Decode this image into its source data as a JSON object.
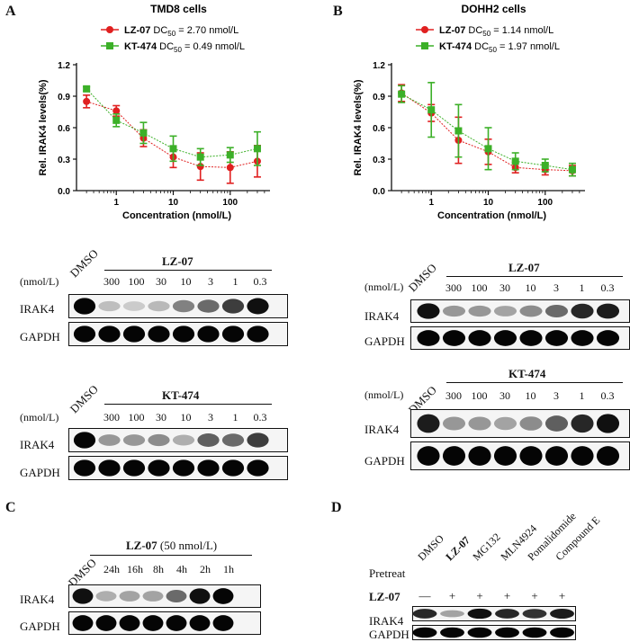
{
  "panels": {
    "a": "A",
    "b": "B",
    "c": "C",
    "d": "D"
  },
  "chart_data": [
    {
      "type": "line",
      "title": "TMD8 cells",
      "xlabel": "Concentration (nmol/L)",
      "ylabel": "Rel. IRAK4 levels(%)",
      "xscale": "log",
      "xlim": [
        0.2,
        500
      ],
      "ylim": [
        0.0,
        1.2
      ],
      "xticks": [
        "1",
        "10",
        "100"
      ],
      "yticks": [
        "0.0",
        "0.3",
        "0.6",
        "0.9",
        "1.2"
      ],
      "x": [
        0.3,
        1,
        3,
        10,
        30,
        100,
        300
      ],
      "series": [
        {
          "name": "LZ-07",
          "dc": "DC50 = 2.70 nmol/L",
          "color": "#e02020",
          "marker": "circle",
          "values": [
            0.85,
            0.76,
            0.5,
            0.32,
            0.23,
            0.22,
            0.28
          ],
          "errors": [
            0.06,
            0.05,
            0.08,
            0.1,
            0.13,
            0.15,
            0.15
          ]
        },
        {
          "name": "KT-474",
          "dc": "DC50 = 0.49 nmol/L",
          "color": "#3cb028",
          "marker": "square",
          "values": [
            0.97,
            0.67,
            0.55,
            0.4,
            0.32,
            0.34,
            0.4
          ],
          "errors": [
            0.02,
            0.06,
            0.1,
            0.12,
            0.08,
            0.07,
            0.16
          ]
        }
      ],
      "legend": [
        {
          "bold": "LZ-07",
          "text": "DC",
          "sub": "50",
          "rest": " = 2.70 nmol/L"
        },
        {
          "bold": "KT-474",
          "text": "DC",
          "sub": "50",
          "rest": " = 0.49 nmol/L"
        }
      ]
    },
    {
      "type": "line",
      "title": "DOHH2 cells",
      "xlabel": "Concentration (nmol/L)",
      "ylabel": "Rel. IRAK4 levels(%)",
      "xscale": "log",
      "xlim": [
        0.2,
        500
      ],
      "ylim": [
        0.0,
        1.2
      ],
      "xticks": [
        "1",
        "10",
        "100"
      ],
      "yticks": [
        "0.0",
        "0.3",
        "0.6",
        "0.9",
        "1.2"
      ],
      "x": [
        0.3,
        1,
        3,
        10,
        30,
        100,
        300
      ],
      "series": [
        {
          "name": "LZ-07",
          "dc": "DC50 = 1.14 nmol/L",
          "color": "#e02020",
          "marker": "circle",
          "values": [
            0.93,
            0.74,
            0.48,
            0.37,
            0.22,
            0.2,
            0.19
          ],
          "errors": [
            0.08,
            0.08,
            0.22,
            0.12,
            0.05,
            0.05,
            0.05
          ]
        },
        {
          "name": "KT-474",
          "dc": "DC50 = 1.97 nmol/L",
          "color": "#3cb028",
          "marker": "square",
          "values": [
            0.92,
            0.77,
            0.57,
            0.4,
            0.28,
            0.24,
            0.2
          ],
          "errors": [
            0.08,
            0.26,
            0.25,
            0.2,
            0.08,
            0.06,
            0.06
          ]
        }
      ],
      "legend": [
        {
          "bold": "LZ-07",
          "text": "DC",
          "sub": "50",
          "rest": " = 1.14 nmol/L"
        },
        {
          "bold": "KT-474",
          "text": "DC",
          "sub": "50",
          "rest": " = 1.97 nmol/L"
        }
      ]
    }
  ],
  "blots": {
    "a_lz": {
      "header": "LZ-07",
      "unit": "(nmol/L)",
      "dmso": "DMSO",
      "lanes": [
        "300",
        "100",
        "30",
        "10",
        "3",
        "1",
        "0.3"
      ],
      "rows": [
        "IRAK4",
        "GAPDH"
      ]
    },
    "a_kt": {
      "header": "KT-474",
      "unit": "(nmol/L)",
      "dmso": "DMSO",
      "lanes": [
        "300",
        "100",
        "30",
        "10",
        "3",
        "1",
        "0.3"
      ],
      "rows": [
        "IRAK4",
        "GAPDH"
      ]
    },
    "b_lz": {
      "header": "LZ-07",
      "unit": "(nmol/L)",
      "dmso": "DMSO",
      "lanes": [
        "300",
        "100",
        "30",
        "10",
        "3",
        "1",
        "0.3"
      ],
      "rows": [
        "IRAK4",
        "GAPDH"
      ]
    },
    "b_kt": {
      "header": "KT-474",
      "unit": "(nmol/L)",
      "dmso": "DMSO",
      "lanes": [
        "300",
        "100",
        "30",
        "10",
        "3",
        "1",
        "0.3"
      ],
      "rows": [
        "IRAK4",
        "GAPDH"
      ]
    },
    "c": {
      "header_bold": "LZ-07",
      "header_rest": " (50 nmol/L)",
      "dmso": "DMSO",
      "lanes": [
        "24h",
        "16h",
        "8h",
        "4h",
        "2h",
        "1h"
      ],
      "rows": [
        "IRAK4",
        "GAPDH"
      ]
    },
    "d": {
      "pretreat": "Pretreat",
      "lz": "LZ-07",
      "columns": [
        "DMSO",
        "LZ-07",
        "MG132",
        "MLN4924",
        "Pomalidomide",
        "Compound E"
      ],
      "signs": [
        "—",
        "+",
        "+",
        "+",
        "+",
        "+"
      ],
      "rows": [
        "IRAK4",
        "GAPDH"
      ]
    }
  }
}
